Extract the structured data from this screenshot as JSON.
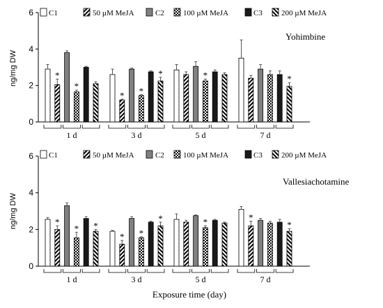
{
  "chart_data": [
    {
      "type": "bar",
      "title": "Yohimbine",
      "ylabel": "ng/mg DW",
      "xlabel": "",
      "ylim": [
        0,
        6
      ],
      "yticks": [
        0,
        2,
        4,
        6
      ],
      "categories": [
        "1 d",
        "3 d",
        "5 d",
        "7 d"
      ],
      "legend_placement": "top",
      "series": [
        {
          "name": "C1",
          "pattern": "white",
          "values": [
            2.9,
            2.6,
            2.85,
            3.5
          ],
          "errors": [
            0.25,
            0.3,
            0.3,
            1.0
          ],
          "significant": [
            false,
            false,
            false,
            false
          ]
        },
        {
          "name": "50 µM MeJA",
          "pattern": "diagonal",
          "values": [
            2.05,
            1.2,
            2.6,
            2.4
          ],
          "errors": [
            0.3,
            0.05,
            0.15,
            0.15
          ],
          "significant": [
            true,
            true,
            false,
            false
          ]
        },
        {
          "name": "C2",
          "pattern": "gray",
          "values": [
            3.8,
            2.9,
            3.05,
            2.9
          ],
          "errors": [
            0.1,
            0.05,
            0.25,
            0.25
          ],
          "significant": [
            false,
            false,
            false,
            false
          ]
        },
        {
          "name": "100 µM MeJA",
          "pattern": "checker",
          "values": [
            1.65,
            1.45,
            2.25,
            2.6
          ],
          "errors": [
            0.1,
            0.05,
            0.1,
            0.2
          ],
          "significant": [
            true,
            true,
            true,
            false
          ]
        },
        {
          "name": "C3",
          "pattern": "black",
          "values": [
            3.0,
            2.75,
            2.75,
            2.6
          ],
          "errors": [
            0.05,
            0.05,
            0.1,
            0.2
          ],
          "significant": [
            false,
            false,
            false,
            false
          ]
        },
        {
          "name": "200 µM MeJA",
          "pattern": "diagonal2",
          "values": [
            2.1,
            2.25,
            2.6,
            1.95
          ],
          "errors": [
            0.1,
            0.2,
            0.1,
            0.2
          ],
          "significant": [
            false,
            true,
            false,
            true
          ]
        }
      ]
    },
    {
      "type": "bar",
      "title": "Vallesiachotamine",
      "ylabel": "ng/mg DW",
      "xlabel": "Exposure time (day)",
      "ylim": [
        0,
        6
      ],
      "yticks": [
        0,
        2,
        4,
        6
      ],
      "categories": [
        "1 d",
        "3 d",
        "5 d",
        "7 d"
      ],
      "legend_placement": "top",
      "series": [
        {
          "name": "C1",
          "pattern": "white",
          "values": [
            2.55,
            1.9,
            2.55,
            3.1
          ],
          "errors": [
            0.1,
            0.05,
            0.3,
            0.15
          ],
          "significant": [
            false,
            false,
            false,
            false
          ]
        },
        {
          "name": "50 µM MeJA",
          "pattern": "diagonal",
          "values": [
            2.0,
            1.2,
            2.4,
            2.2
          ],
          "errors": [
            0.2,
            0.2,
            0.1,
            0.25
          ],
          "significant": [
            true,
            true,
            false,
            true
          ]
        },
        {
          "name": "C2",
          "pattern": "gray",
          "values": [
            3.3,
            2.6,
            2.75,
            2.5
          ],
          "errors": [
            0.15,
            0.1,
            0.05,
            0.1
          ],
          "significant": [
            false,
            false,
            false,
            false
          ]
        },
        {
          "name": "100 µM MeJA",
          "pattern": "checker",
          "values": [
            1.55,
            1.55,
            2.1,
            2.35
          ],
          "errors": [
            0.3,
            0.05,
            0.1,
            0.1
          ],
          "significant": [
            true,
            true,
            true,
            false
          ]
        },
        {
          "name": "C3",
          "pattern": "black",
          "values": [
            2.6,
            2.4,
            2.5,
            2.4
          ],
          "errors": [
            0.1,
            0.05,
            0.05,
            0.15
          ],
          "significant": [
            false,
            false,
            false,
            false
          ]
        },
        {
          "name": "200 µM MeJA",
          "pattern": "diagonal2",
          "values": [
            1.9,
            2.2,
            2.35,
            1.9
          ],
          "errors": [
            0.1,
            0.2,
            0.05,
            0.15
          ],
          "significant": [
            true,
            true,
            false,
            true
          ]
        }
      ]
    }
  ]
}
